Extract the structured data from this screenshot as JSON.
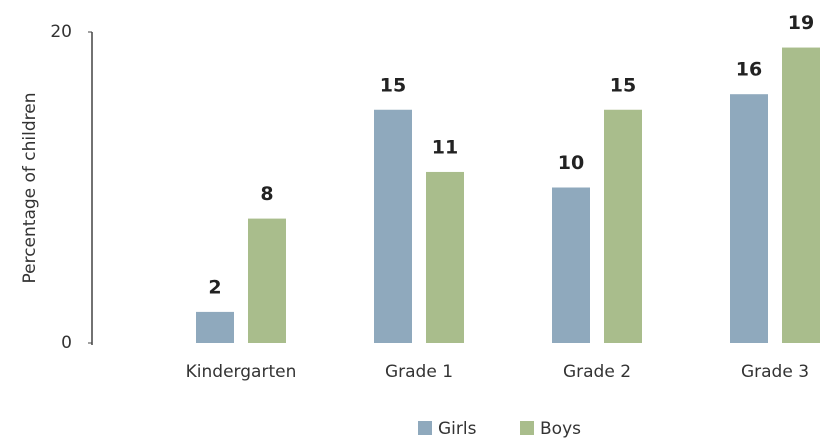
{
  "chart_data": {
    "type": "bar",
    "categories": [
      "Kindergarten",
      "Grade 1",
      "Grade 2",
      "Grade 3"
    ],
    "series": [
      {
        "name": "Girls",
        "color": "#8fa9bd",
        "values": [
          2,
          15,
          10,
          16
        ]
      },
      {
        "name": "Boys",
        "color": "#a9bd8c",
        "values": [
          8,
          11,
          15,
          19
        ]
      }
    ],
    "y_label": "Percentage of children",
    "ylim": [
      0,
      20
    ],
    "yticks": [
      0,
      20
    ],
    "legend": "bottom"
  }
}
